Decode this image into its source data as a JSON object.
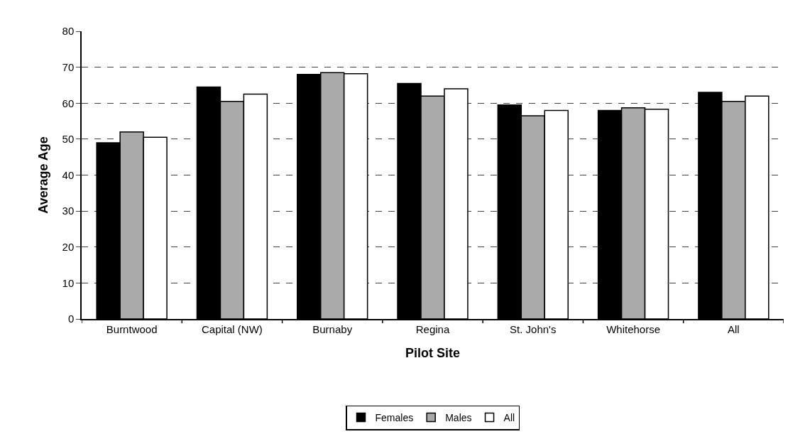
{
  "chart_data": {
    "type": "bar",
    "xlabel": "Pilot Site",
    "ylabel": "Average Age",
    "categories": [
      "Burntwood",
      "Capital (NW)",
      "Burnaby",
      "Regina",
      "St. John's",
      "Whitehorse",
      "All"
    ],
    "series": [
      {
        "name": "Females",
        "color": "#000000",
        "values": [
          49,
          64.5,
          68,
          65.5,
          59.5,
          58,
          63
        ]
      },
      {
        "name": "Males",
        "color": "#aaaaaa",
        "values": [
          52,
          60.5,
          68.5,
          62,
          56.5,
          58.7,
          60.5
        ]
      },
      {
        "name": "All",
        "color": "#ffffff",
        "values": [
          50.5,
          62.5,
          68.2,
          64,
          58,
          58.3,
          62
        ]
      }
    ],
    "ylim": [
      0,
      80
    ],
    "yticks": [
      0,
      10,
      20,
      30,
      40,
      50,
      60,
      70,
      80
    ],
    "grid": "y",
    "legend": "bottom"
  }
}
